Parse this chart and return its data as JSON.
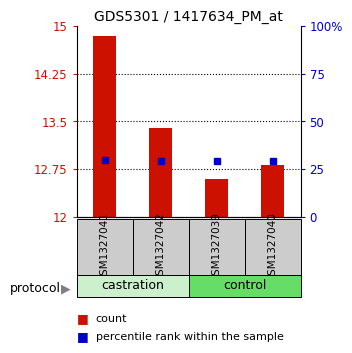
{
  "title": "GDS5301 / 1417634_PM_at",
  "samples": [
    "GSM1327041",
    "GSM1327042",
    "GSM1327039",
    "GSM1327040"
  ],
  "red_values": [
    14.85,
    13.4,
    12.6,
    12.82
  ],
  "blue_values": [
    12.9,
    12.87,
    12.87,
    12.88
  ],
  "ymin": 12,
  "ymax": 15,
  "yticks": [
    12,
    12.75,
    13.5,
    14.25,
    15
  ],
  "ytick_labels": [
    "12",
    "12.75",
    "13.5",
    "14.25",
    "15"
  ],
  "right_yticks": [
    0,
    25,
    50,
    75,
    100
  ],
  "right_ytick_labels": [
    "0",
    "25",
    "50",
    "75",
    "100%"
  ],
  "bar_color": "#cc1100",
  "square_color": "#0000cc",
  "castration_color": "#ccf0cc",
  "control_color": "#66dd66",
  "sample_box_color": "#cccccc",
  "grid_dotted_at": [
    12.75,
    13.5,
    14.25
  ],
  "bar_width": 0.4,
  "title_fontsize": 10,
  "tick_fontsize": 8.5,
  "sample_fontsize": 7.5,
  "group_fontsize": 9,
  "legend_fontsize": 8
}
